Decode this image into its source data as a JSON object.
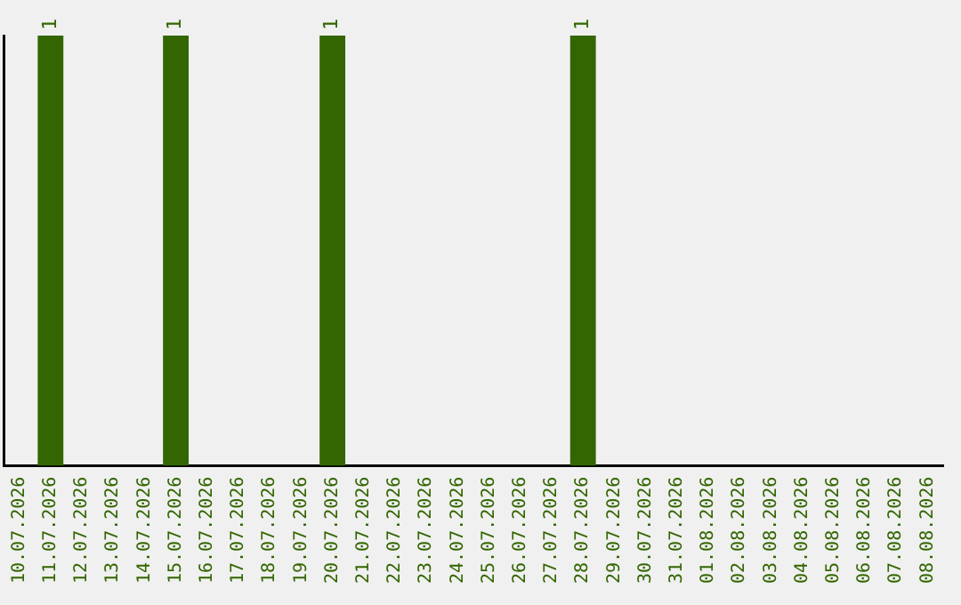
{
  "chart_data": {
    "type": "bar",
    "categories": [
      "10.07.2026",
      "11.07.2026",
      "12.07.2026",
      "13.07.2026",
      "14.07.2026",
      "15.07.2026",
      "16.07.2026",
      "17.07.2026",
      "18.07.2026",
      "19.07.2026",
      "20.07.2026",
      "21.07.2026",
      "22.07.2026",
      "23.07.2026",
      "24.07.2026",
      "25.07.2026",
      "26.07.2026",
      "27.07.2026",
      "28.07.2026",
      "29.07.2026",
      "30.07.2026",
      "31.07.2026",
      "01.08.2026",
      "02.08.2026",
      "03.08.2026",
      "04.08.2026",
      "05.08.2026",
      "06.08.2026",
      "07.08.2026",
      "08.08.2026"
    ],
    "values": [
      0,
      1,
      0,
      0,
      0,
      1,
      0,
      0,
      0,
      0,
      1,
      0,
      0,
      0,
      0,
      0,
      0,
      0,
      1,
      0,
      0,
      0,
      0,
      0,
      0,
      0,
      0,
      0,
      0,
      0
    ],
    "value_labels": [
      null,
      "1",
      null,
      null,
      null,
      "1",
      null,
      null,
      null,
      null,
      "1",
      null,
      null,
      null,
      null,
      null,
      null,
      null,
      "1",
      null,
      null,
      null,
      null,
      null,
      null,
      null,
      null,
      null,
      null,
      null
    ],
    "color": "#336600",
    "ylim": [
      0,
      1
    ],
    "tick_labels": "x",
    "grid": false,
    "legend": false
  }
}
